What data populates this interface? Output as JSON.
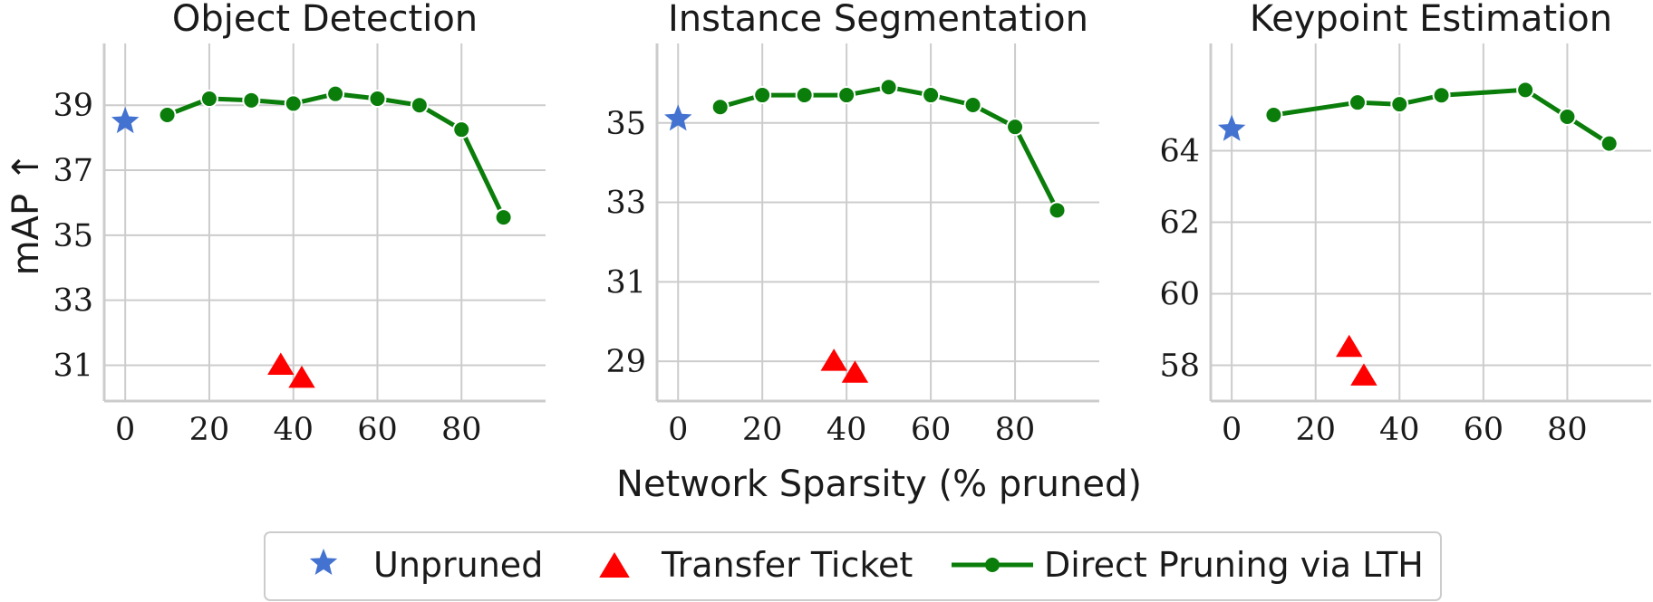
{
  "colors": {
    "unpruned": "#4472d0",
    "transfer": "#ff0000",
    "lth": "#0a7d0a"
  },
  "shared": {
    "xlabel": "Network Sparsity (% pruned)",
    "ylabel": "mAP ↑"
  },
  "legend": {
    "position": "bottom-center",
    "entries": [
      {
        "label": "Unpruned",
        "marker": "star"
      },
      {
        "label": "Transfer Ticket",
        "marker": "triangle"
      },
      {
        "label": "Direct Pruning via LTH",
        "marker": "line-circle"
      }
    ]
  },
  "chart_data": [
    {
      "type": "line",
      "title": "Object Detection",
      "xlim": [
        -5,
        100
      ],
      "ylim": [
        29.9,
        40.9
      ],
      "xticks": [
        0,
        20,
        40,
        60,
        80
      ],
      "yticks": [
        31,
        33,
        35,
        37,
        39
      ],
      "series": [
        {
          "name": "Unpruned",
          "marker": "star",
          "x": [
            0
          ],
          "y": [
            38.5
          ]
        },
        {
          "name": "Transfer Ticket",
          "marker": "triangle",
          "x": [
            37,
            42
          ],
          "y": [
            31.0,
            30.6
          ]
        },
        {
          "name": "Direct Pruning via LTH",
          "marker": "line-circle",
          "x": [
            10,
            20,
            30,
            40,
            50,
            60,
            70,
            80,
            90
          ],
          "y": [
            38.7,
            39.2,
            39.15,
            39.05,
            39.35,
            39.2,
            39.0,
            38.25,
            35.55
          ]
        }
      ]
    },
    {
      "type": "line",
      "title": "Instance Segmentation",
      "xlim": [
        -5,
        100
      ],
      "ylim": [
        28.0,
        37.0
      ],
      "xticks": [
        0,
        20,
        40,
        60,
        80
      ],
      "yticks": [
        29,
        31,
        33,
        35
      ],
      "series": [
        {
          "name": "Unpruned",
          "marker": "star",
          "x": [
            0
          ],
          "y": [
            35.1
          ]
        },
        {
          "name": "Transfer Ticket",
          "marker": "triangle",
          "x": [
            37,
            42
          ],
          "y": [
            29.0,
            28.7
          ]
        },
        {
          "name": "Direct Pruning via LTH",
          "marker": "line-circle",
          "x": [
            10,
            20,
            30,
            40,
            50,
            60,
            70,
            80,
            90
          ],
          "y": [
            35.4,
            35.7,
            35.7,
            35.7,
            35.9,
            35.7,
            35.45,
            34.9,
            32.8
          ]
        }
      ]
    },
    {
      "type": "line",
      "title": "Keypoint Estimation",
      "xlim": [
        -5,
        100
      ],
      "ylim": [
        57.0,
        67.0
      ],
      "xticks": [
        0,
        20,
        40,
        60,
        80
      ],
      "yticks": [
        58,
        60,
        62,
        64
      ],
      "series": [
        {
          "name": "Unpruned",
          "marker": "star",
          "x": [
            0
          ],
          "y": [
            64.6
          ]
        },
        {
          "name": "Transfer Ticket",
          "marker": "triangle",
          "x": [
            28,
            31.5
          ],
          "y": [
            58.5,
            57.7
          ]
        },
        {
          "name": "Direct Pruning via LTH",
          "marker": "line-circle",
          "x": [
            10,
            30,
            40,
            50,
            70,
            80,
            90
          ],
          "y": [
            65.0,
            65.35,
            65.3,
            65.55,
            65.7,
            64.95,
            64.2
          ]
        }
      ]
    }
  ]
}
